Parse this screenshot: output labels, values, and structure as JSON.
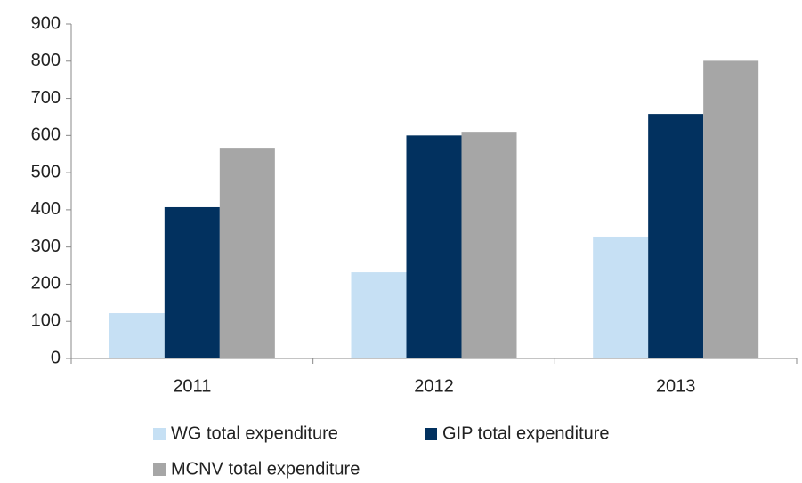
{
  "chart_data": {
    "type": "bar",
    "categories": [
      "2011",
      "2012",
      "2013"
    ],
    "series": [
      {
        "name": "WG total expenditure",
        "color": "#c6e0f4",
        "values": [
          122,
          232,
          328
        ]
      },
      {
        "name": "GIP total expenditure",
        "color": "#02315f",
        "values": [
          407,
          600,
          658
        ]
      },
      {
        "name": "MCNV total expenditure",
        "color": "#a6a6a6",
        "values": [
          567,
          610,
          801
        ]
      }
    ],
    "ylim": [
      0,
      900
    ],
    "yticks": [
      0,
      100,
      200,
      300,
      400,
      500,
      600,
      700,
      800,
      900
    ],
    "grid": false,
    "legend": "bottom"
  }
}
